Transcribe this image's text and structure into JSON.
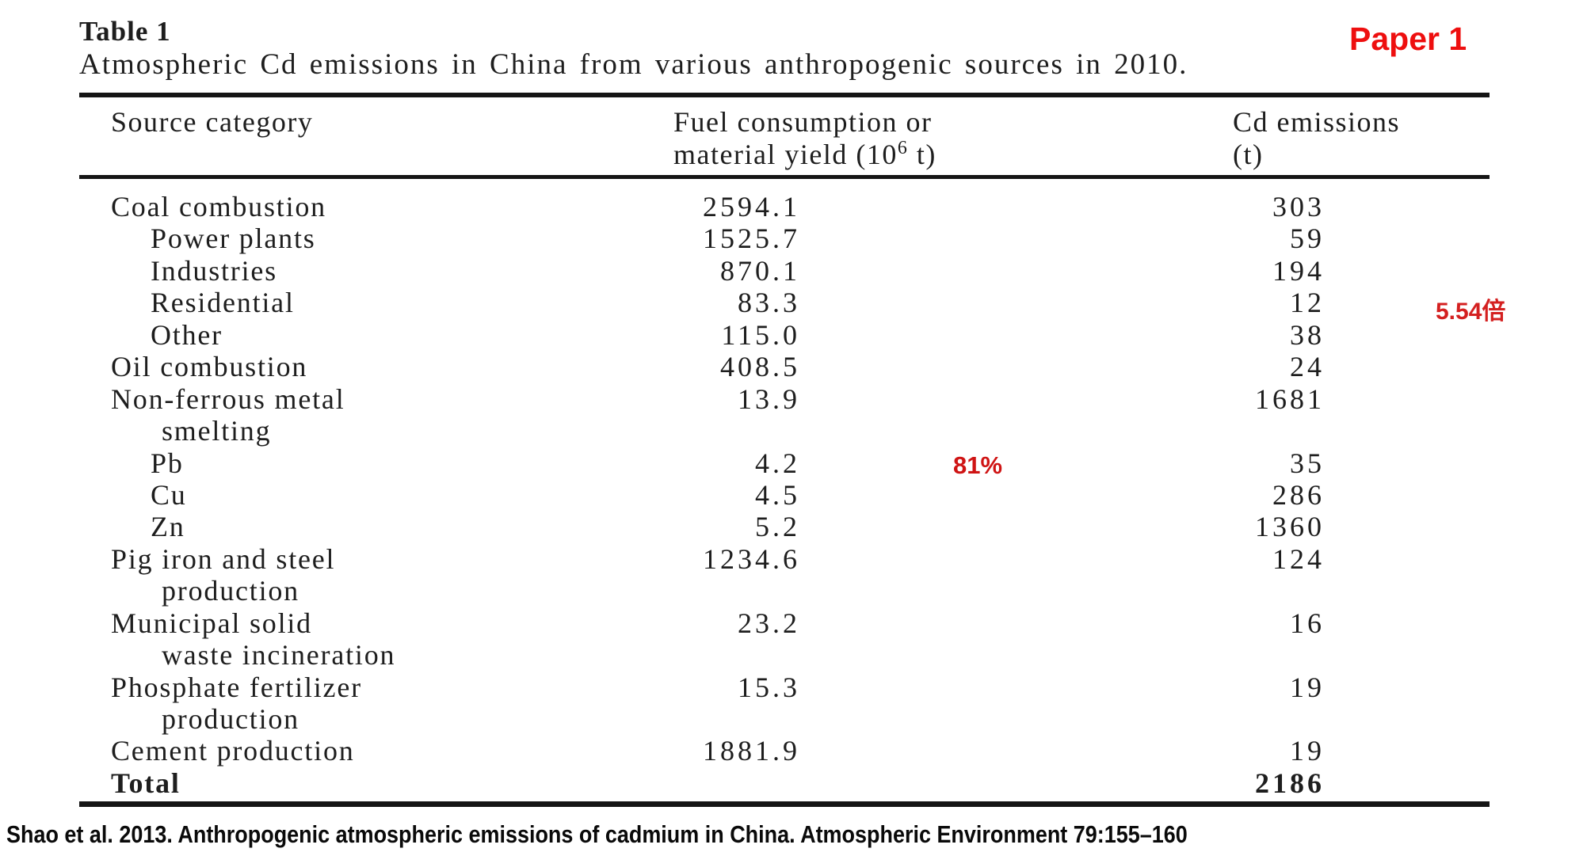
{
  "annotations": {
    "paper_label": "Paper 1",
    "paper_label_color": "#ee0f0f",
    "ratio_note": "5.54倍",
    "percent_note": "81%",
    "note_color": "#d01717"
  },
  "table": {
    "label": "Table 1",
    "caption": "Atmospheric Cd emissions in China from various anthropogenic sources in 2010.",
    "header": {
      "col1": "Source category",
      "col2_line1": "Fuel consumption or",
      "col2_line2_pre": "material yield (10",
      "col2_sup": "6",
      "col2_line2_post": " t)",
      "col3_line1": "Cd emissions",
      "col3_line2": "(t)"
    },
    "rows": [
      {
        "lines": [
          "Coal combustion"
        ],
        "indent": 0,
        "fuel": "2594.1",
        "cd": "303",
        "bold": false
      },
      {
        "lines": [
          "Power plants"
        ],
        "indent": 1,
        "fuel": "1525.7",
        "cd": "59",
        "bold": false
      },
      {
        "lines": [
          "Industries"
        ],
        "indent": 1,
        "fuel": "870.1",
        "cd": "194",
        "bold": false
      },
      {
        "lines": [
          "Residential"
        ],
        "indent": 1,
        "fuel": "83.3",
        "cd": "12",
        "bold": false
      },
      {
        "lines": [
          "Other"
        ],
        "indent": 1,
        "fuel": "115.0",
        "cd": "38",
        "bold": false
      },
      {
        "lines": [
          "Oil combustion"
        ],
        "indent": 0,
        "fuel": "408.5",
        "cd": "24",
        "bold": false
      },
      {
        "lines": [
          "Non-ferrous metal",
          "smelting"
        ],
        "indent": 0,
        "fuel": "13.9",
        "cd": "1681",
        "bold": false
      },
      {
        "lines": [
          "Pb"
        ],
        "indent": 1,
        "fuel": "4.2",
        "cd": "35",
        "bold": false
      },
      {
        "lines": [
          "Cu"
        ],
        "indent": 1,
        "fuel": "4.5",
        "cd": "286",
        "bold": false
      },
      {
        "lines": [
          "Zn"
        ],
        "indent": 1,
        "fuel": "5.2",
        "cd": "1360",
        "bold": false
      },
      {
        "lines": [
          "Pig iron and steel",
          "production"
        ],
        "indent": 0,
        "fuel": "1234.6",
        "cd": "124",
        "bold": false
      },
      {
        "lines": [
          "Municipal solid",
          "waste incineration"
        ],
        "indent": 0,
        "fuel": "23.2",
        "cd": "16",
        "bold": false
      },
      {
        "lines": [
          "Phosphate fertilizer",
          "production"
        ],
        "indent": 0,
        "fuel": "15.3",
        "cd": "19",
        "bold": false
      },
      {
        "lines": [
          "Cement production"
        ],
        "indent": 0,
        "fuel": "1881.9",
        "cd": "19",
        "bold": false
      },
      {
        "lines": [
          "Total"
        ],
        "indent": 0,
        "fuel": "",
        "cd": "2186",
        "bold": true
      }
    ]
  },
  "citation": {
    "text": "Shao et al. 2013. Anthropogenic atmospheric emissions of cadmium in China. Atmospheric Environment 79:155–160"
  }
}
